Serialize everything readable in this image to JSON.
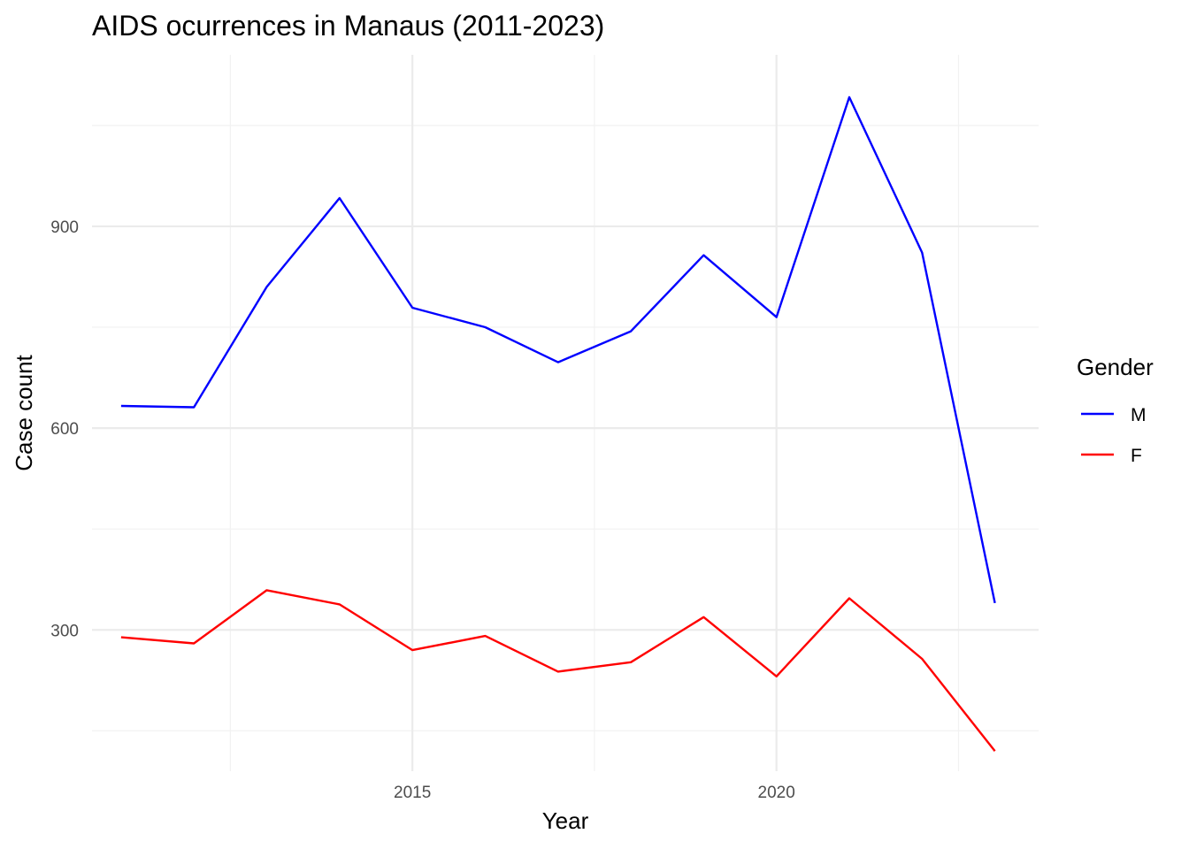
{
  "chart_data": {
    "type": "line",
    "title": "AIDS ocurrences in Manaus (2011-2023)",
    "xlabel": "Year",
    "ylabel": "Case count",
    "x": [
      2011,
      2012,
      2013,
      2014,
      2015,
      2016,
      2017,
      2018,
      2019,
      2020,
      2021,
      2022,
      2023
    ],
    "xlim": [
      2010.6,
      2023.6
    ],
    "ylim": [
      90,
      1155
    ],
    "x_major_ticks": [
      2015,
      2020
    ],
    "x_minor_ticks": [
      2012.5,
      2017.5,
      2022.5
    ],
    "y_major_ticks": [
      300,
      600,
      900
    ],
    "y_minor_ticks": [
      150,
      450,
      750,
      1050
    ],
    "x_tick_labels": [
      "2015",
      "2020"
    ],
    "y_tick_labels": [
      "300",
      "600",
      "900"
    ],
    "grid": true,
    "legend": {
      "title": "Gender",
      "position": "right"
    },
    "series": [
      {
        "name": "M",
        "color": "#0000ff",
        "values": [
          633,
          631,
          810,
          942,
          779,
          750,
          698,
          744,
          857,
          765,
          1092,
          861,
          340
        ]
      },
      {
        "name": "F",
        "color": "#ff0000",
        "values": [
          289,
          280,
          359,
          338,
          270,
          291,
          238,
          252,
          319,
          231,
          347,
          257,
          120
        ]
      }
    ]
  }
}
